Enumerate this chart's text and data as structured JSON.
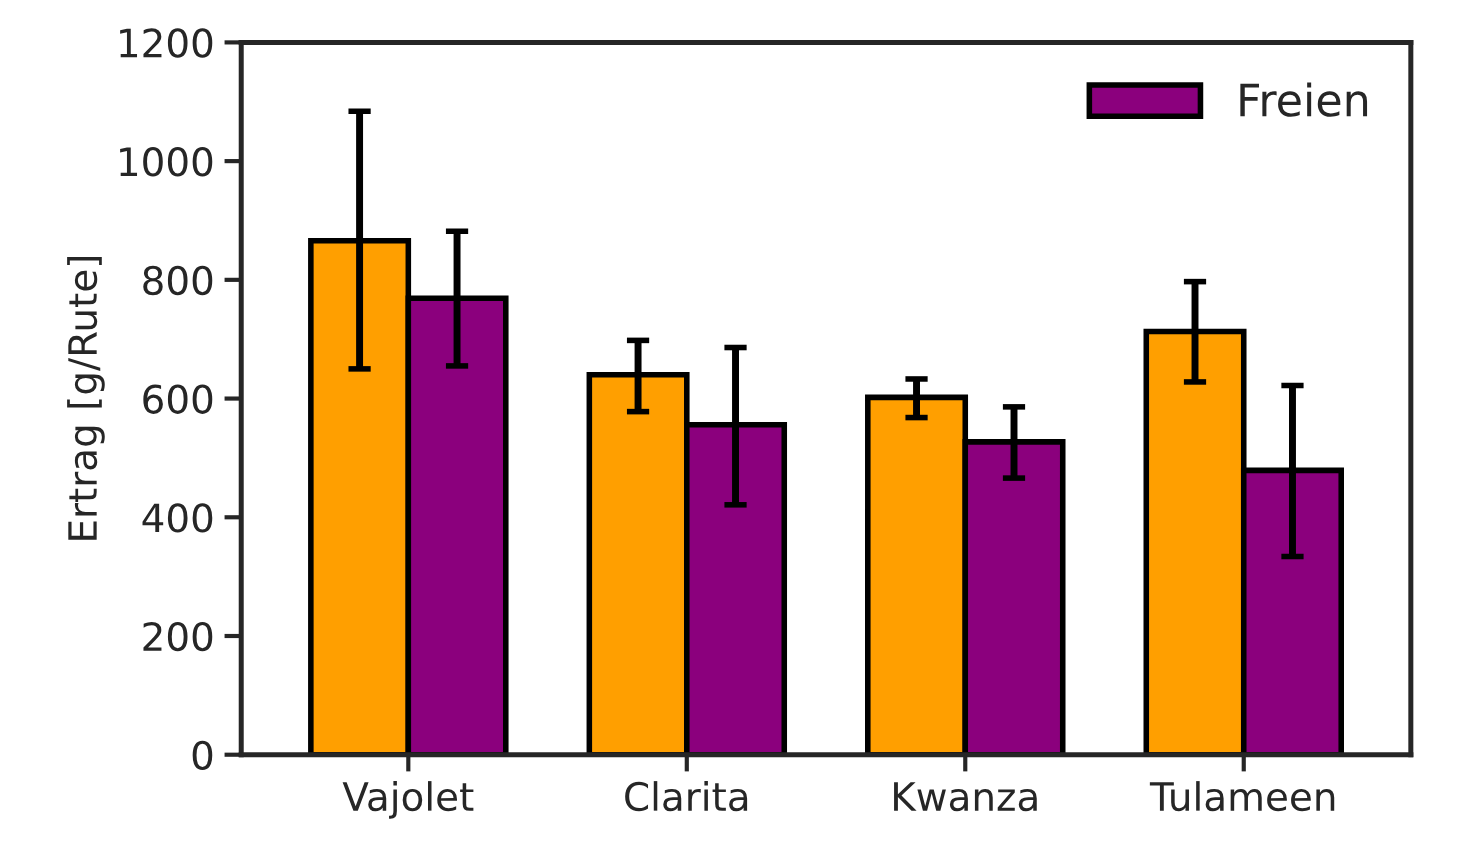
{
  "chart_data": {
    "type": "bar",
    "ylabel": "Ertrag [g/Rute]",
    "categories": [
      "Vajolet",
      "Clarita",
      "Kwanza",
      "Tulameen"
    ],
    "series": [
      {
        "color": "#ff9f00",
        "values": [
          866,
          640,
          602,
          713
        ],
        "errors": [
          [
            650,
            1084
          ],
          [
            578,
            698
          ],
          [
            568,
            633
          ],
          [
            628,
            797
          ]
        ]
      },
      {
        "name": "Freien",
        "color": "#8b007d",
        "values": [
          769,
          556,
          527,
          479
        ],
        "errors": [
          [
            655,
            882
          ],
          [
            421,
            686
          ],
          [
            466,
            586
          ],
          [
            334,
            622
          ]
        ]
      }
    ],
    "ylim": [
      0,
      1200
    ],
    "yticks": [
      0,
      200,
      400,
      600,
      800,
      1000,
      1200
    ],
    "grid": false,
    "legend": "top right"
  }
}
